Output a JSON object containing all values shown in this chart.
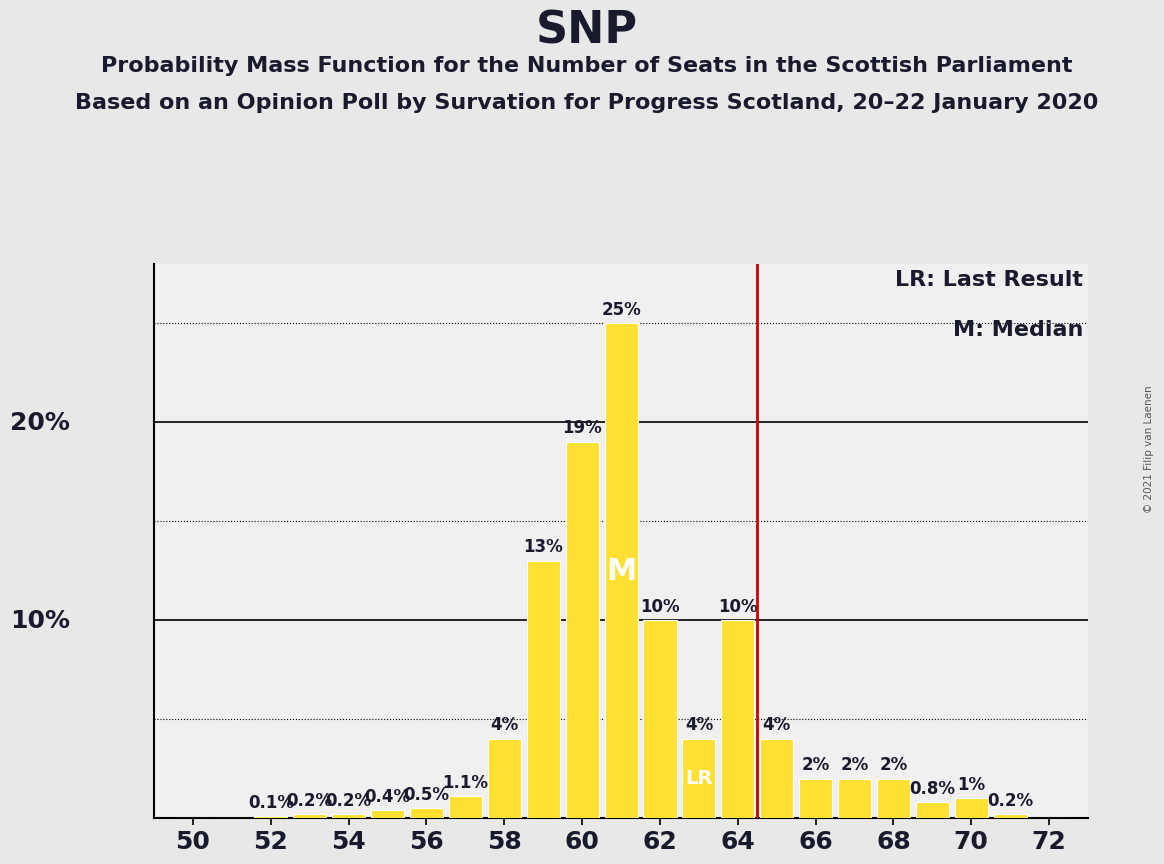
{
  "title": "SNP",
  "subtitle1": "Probability Mass Function for the Number of Seats in the Scottish Parliament",
  "subtitle2": "Based on an Opinion Poll by Survation for Progress Scotland, 20–22 January 2020",
  "copyright": "© 2021 Filip van Laenen",
  "seats": [
    50,
    51,
    52,
    53,
    54,
    55,
    56,
    57,
    58,
    59,
    60,
    61,
    62,
    63,
    64,
    65,
    66,
    67,
    68,
    69,
    70,
    71,
    72
  ],
  "probabilities": [
    0.0,
    0.0,
    0.1,
    0.2,
    0.2,
    0.4,
    0.5,
    1.1,
    4.0,
    13.0,
    19.0,
    25.0,
    10.0,
    4.0,
    10.0,
    4.0,
    2.0,
    2.0,
    2.0,
    0.8,
    1.0,
    0.2,
    0.0
  ],
  "bar_color": "#FFE033",
  "bar_edge_color": "#FFFFFF",
  "background_color": "#E8E8E8",
  "plot_background_color": "#F0F0F0",
  "median_seat": 61,
  "last_result_seat": 65,
  "vline_color": "#CC0000",
  "median_label": "M",
  "lr_label": "LR",
  "legend_lr": "LR: Last Result",
  "legend_m": "M: Median",
  "xlabel_seats": [
    50,
    52,
    54,
    56,
    58,
    60,
    62,
    64,
    66,
    68,
    70,
    72
  ],
  "solid_levels": [
    10,
    20
  ],
  "dotted_levels": [
    5,
    15,
    25
  ],
  "ylim": [
    0,
    28
  ],
  "xlim": [
    49,
    73
  ],
  "title_fontsize": 32,
  "subtitle_fontsize": 16,
  "axis_label_fontsize": 18,
  "bar_label_fontsize": 12,
  "legend_fontsize": 16,
  "tick_fontsize": 18
}
